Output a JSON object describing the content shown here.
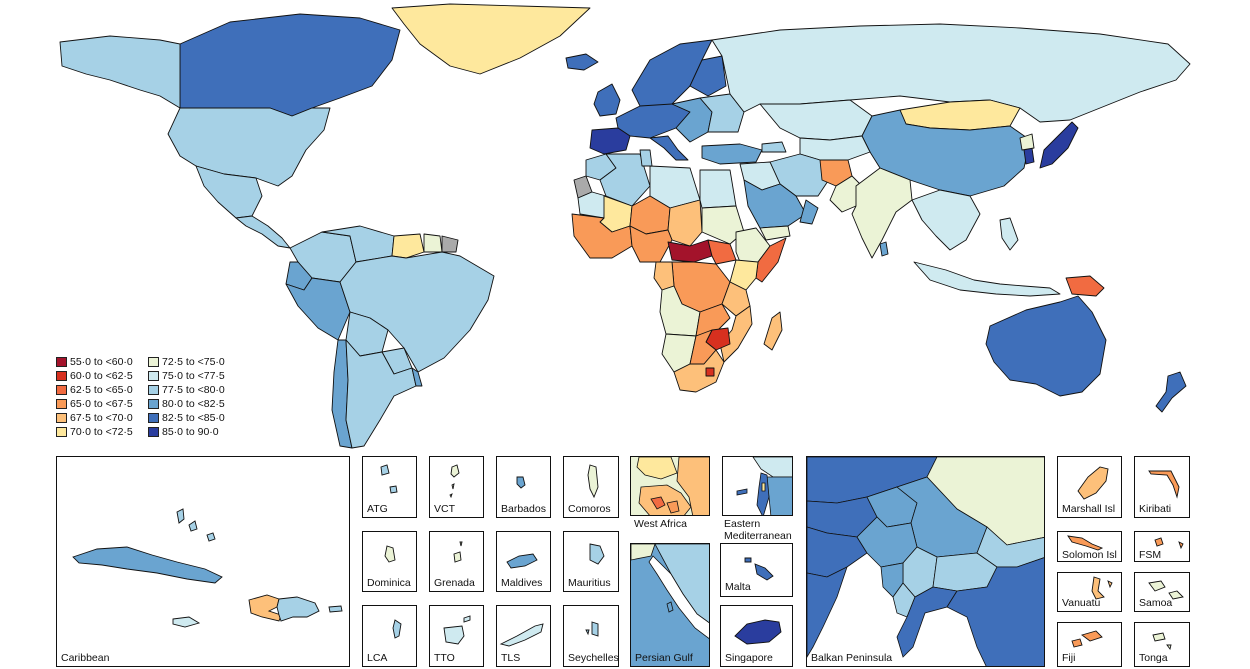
{
  "legend": {
    "items": [
      {
        "label": "55·0 to <60·0",
        "color": "#a3132b"
      },
      {
        "label": "60·0 to <62·5",
        "color": "#d7301f"
      },
      {
        "label": "62·5 to <65·0",
        "color": "#f16b41"
      },
      {
        "label": "65·0 to <67·5",
        "color": "#f99a58"
      },
      {
        "label": "67·5 to <70·0",
        "color": "#fdc07a"
      },
      {
        "label": "70·0 to <72·5",
        "color": "#fee89d"
      },
      {
        "label": "72·5 to <75·0",
        "color": "#ebf3d6"
      },
      {
        "label": "75·0 to <77·5",
        "color": "#cfeaf0"
      },
      {
        "label": "77·5 to <80·0",
        "color": "#a6d1e6"
      },
      {
        "label": "80·0 to <82·5",
        "color": "#6aa4d0"
      },
      {
        "label": "82·5 to <85·0",
        "color": "#3f6fba"
      },
      {
        "label": "85·0 to 90·0",
        "color": "#2a3d9e"
      }
    ],
    "no_data_color": "#aaaaaa"
  },
  "regions": [
    {
      "name": "Canada",
      "color": "#3f6fba"
    },
    {
      "name": "United States",
      "color": "#a6d1e6"
    },
    {
      "name": "Alaska",
      "color": "#a6d1e6"
    },
    {
      "name": "Greenland",
      "color": "#fee89d"
    },
    {
      "name": "Mexico",
      "color": "#a6d1e6"
    },
    {
      "name": "Central America",
      "color": "#a6d1e6"
    },
    {
      "name": "Colombia",
      "color": "#a6d1e6"
    },
    {
      "name": "Venezuela",
      "color": "#a6d1e6"
    },
    {
      "name": "Guyana",
      "color": "#fee89d"
    },
    {
      "name": "Suriname",
      "color": "#ebf3d6"
    },
    {
      "name": "French Guiana",
      "color": "#aaaaaa"
    },
    {
      "name": "Ecuador",
      "color": "#6aa4d0"
    },
    {
      "name": "Peru",
      "color": "#6aa4d0"
    },
    {
      "name": "Brazil",
      "color": "#a6d1e6"
    },
    {
      "name": "Bolivia",
      "color": "#a6d1e6"
    },
    {
      "name": "Paraguay",
      "color": "#a6d1e6"
    },
    {
      "name": "Chile",
      "color": "#6aa4d0"
    },
    {
      "name": "Argentina",
      "color": "#a6d1e6"
    },
    {
      "name": "Uruguay",
      "color": "#6aa4d0"
    },
    {
      "name": "Iceland",
      "color": "#3f6fba"
    },
    {
      "name": "Scandinavia",
      "color": "#3f6fba"
    },
    {
      "name": "Finland",
      "color": "#3f6fba"
    },
    {
      "name": "UK and Ireland",
      "color": "#3f6fba"
    },
    {
      "name": "Western Europe",
      "color": "#3f6fba"
    },
    {
      "name": "Spain and Portugal",
      "color": "#2a3d9e"
    },
    {
      "name": "Italy",
      "color": "#3f6fba"
    },
    {
      "name": "Eastern Europe",
      "color": "#6aa4d0"
    },
    {
      "name": "Belarus and Ukraine",
      "color": "#a6d1e6"
    },
    {
      "name": "Russia",
      "color": "#cfeaf0"
    },
    {
      "name": "Kazakhstan",
      "color": "#cfeaf0"
    },
    {
      "name": "Mongolia",
      "color": "#fee89d"
    },
    {
      "name": "China",
      "color": "#6aa4d0"
    },
    {
      "name": "Korea",
      "color": "#2a3d9e"
    },
    {
      "name": "North Korea",
      "color": "#ebf3d6"
    },
    {
      "name": "Japan",
      "color": "#2a3d9e"
    },
    {
      "name": "Turkey",
      "color": "#6aa4d0"
    },
    {
      "name": "Caucasus",
      "color": "#a6d1e6"
    },
    {
      "name": "Central Asia",
      "color": "#cfeaf0"
    },
    {
      "name": "Iran",
      "color": "#a6d1e6"
    },
    {
      "name": "Iraq and Syria",
      "color": "#cfeaf0"
    },
    {
      "name": "Saudi Arabia",
      "color": "#6aa4d0"
    },
    {
      "name": "Yemen",
      "color": "#ebf3d6"
    },
    {
      "name": "Oman",
      "color": "#6aa4d0"
    },
    {
      "name": "Afghanistan",
      "color": "#f99a58"
    },
    {
      "name": "Pakistan",
      "color": "#ebf3d6"
    },
    {
      "name": "India",
      "color": "#ebf3d6"
    },
    {
      "name": "Sri Lanka",
      "color": "#6aa4d0"
    },
    {
      "name": "Southeast Asia",
      "color": "#cfeaf0"
    },
    {
      "name": "Indonesia",
      "color": "#cfeaf0"
    },
    {
      "name": "Papua New Guinea",
      "color": "#f16b41"
    },
    {
      "name": "Philippines",
      "color": "#cfeaf0"
    },
    {
      "name": "Australia",
      "color": "#3f6fba"
    },
    {
      "name": "New Zealand",
      "color": "#3f6fba"
    },
    {
      "name": "Morocco",
      "color": "#a6d1e6"
    },
    {
      "name": "Western Sahara",
      "color": "#aaaaaa"
    },
    {
      "name": "Algeria",
      "color": "#a6d1e6"
    },
    {
      "name": "Tunisia",
      "color": "#a6d1e6"
    },
    {
      "name": "Libya",
      "color": "#cfeaf0"
    },
    {
      "name": "Egypt",
      "color": "#cfeaf0"
    },
    {
      "name": "Mauritania",
      "color": "#cfeaf0"
    },
    {
      "name": "Mali",
      "color": "#fee89d"
    },
    {
      "name": "Niger",
      "color": "#f99a58"
    },
    {
      "name": "Chad",
      "color": "#fdc07a"
    },
    {
      "name": "Sudan",
      "color": "#ebf3d6"
    },
    {
      "name": "West African coast",
      "color": "#f99a58"
    },
    {
      "name": "Nigeria",
      "color": "#f99a58"
    },
    {
      "name": "Central African Republic",
      "color": "#a3132b"
    },
    {
      "name": "South Sudan",
      "color": "#f16b41"
    },
    {
      "name": "Ethiopia",
      "color": "#ebf3d6"
    },
    {
      "name": "Somalia",
      "color": "#f16b41"
    },
    {
      "name": "Kenya",
      "color": "#fee89d"
    },
    {
      "name": "DR Congo",
      "color": "#f99a58"
    },
    {
      "name": "Gabon and Congo",
      "color": "#fdc07a"
    },
    {
      "name": "Tanzania",
      "color": "#fdc07a"
    },
    {
      "name": "Angola",
      "color": "#ebf3d6"
    },
    {
      "name": "Zambia",
      "color": "#f99a58"
    },
    {
      "name": "Mozambique",
      "color": "#fdc07a"
    },
    {
      "name": "Zimbabwe",
      "color": "#d7301f"
    },
    {
      "name": "Namibia",
      "color": "#ebf3d6"
    },
    {
      "name": "Botswana",
      "color": "#f99a58"
    },
    {
      "name": "South Africa",
      "color": "#fdc07a"
    },
    {
      "name": "Lesotho",
      "color": "#d7301f"
    },
    {
      "name": "Madagascar",
      "color": "#fdc07a"
    }
  ],
  "insets": [
    {
      "label": "Caribbean"
    },
    {
      "label": "ATG",
      "color": "#a6d1e6"
    },
    {
      "label": "VCT",
      "color": "#ebf3d6"
    },
    {
      "label": "Barbados",
      "color": "#6aa4d0"
    },
    {
      "label": "Comoros",
      "color": "#ebf3d6"
    },
    {
      "label": "West Africa"
    },
    {
      "label": "Eastern Mediterranean"
    },
    {
      "label": "Dominica",
      "color": "#ebf3d6"
    },
    {
      "label": "Grenada",
      "color": "#ebf3d6"
    },
    {
      "label": "Maldives",
      "color": "#6aa4d0"
    },
    {
      "label": "Mauritius",
      "color": "#a6d1e6"
    },
    {
      "label": "Persian Gulf"
    },
    {
      "label": "Malta",
      "color": "#3f6fba"
    },
    {
      "label": "LCA",
      "color": "#a6d1e6"
    },
    {
      "label": "TTO",
      "color": "#cfeaf0"
    },
    {
      "label": "TLS",
      "color": "#cfeaf0"
    },
    {
      "label": "Seychelles",
      "color": "#a6d1e6"
    },
    {
      "label": "Singapore",
      "color": "#2a3d9e"
    },
    {
      "label": "Balkan Peninsula"
    },
    {
      "label": "Marshall Isl",
      "color": "#fdc07a"
    },
    {
      "label": "Kiribati",
      "color": "#f99a58"
    },
    {
      "label": "Solomon Isl",
      "color": "#f99a58"
    },
    {
      "label": "FSM",
      "color": "#f99a58"
    },
    {
      "label": "Vanuatu",
      "color": "#fdc07a"
    },
    {
      "label": "Samoa",
      "color": "#ebf3d6"
    },
    {
      "label": "Fiji",
      "color": "#f99a58"
    },
    {
      "label": "Tonga",
      "color": "#ebf3d6"
    }
  ]
}
